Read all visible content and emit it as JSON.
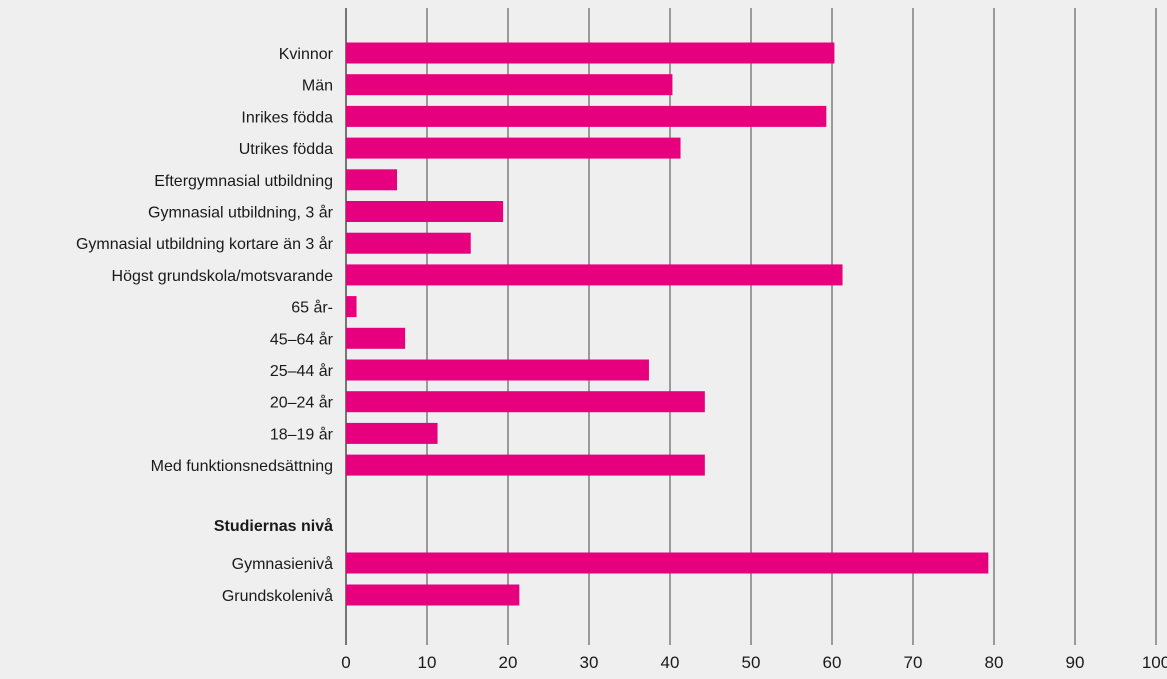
{
  "chart_data": {
    "type": "bar",
    "orientation": "horizontal",
    "title": "",
    "xlabel": "",
    "ylabel": "",
    "xlim": [
      0,
      100
    ],
    "x_ticks": [
      0,
      10,
      20,
      30,
      40,
      50,
      60,
      70,
      80,
      90,
      100
    ],
    "grid": "vertical",
    "legend": "none",
    "bar_color": "#e6007e",
    "gridline_color": "#444444",
    "background_color": "#efefef",
    "categories": [
      "Kvinnor",
      "Män",
      "Inrikes födda",
      "Utrikes födda",
      "Eftergymnasial utbildning",
      "Gymnasial utbildning, 3 år",
      "Gymnasial utbildning kortare än 3 år",
      "Högst grundskola/motsvarande",
      "65 år-",
      "45–64 år",
      "25–44 år",
      "20–24 år",
      "18–19 år",
      "Med funktionsnedsättning",
      "Gymnasienivå",
      "Grundskolenivå"
    ],
    "values": [
      60.3,
      40.3,
      59.3,
      41.3,
      6.3,
      19.4,
      15.4,
      61.3,
      1.3,
      7.3,
      37.4,
      44.3,
      11.3,
      44.3,
      79.3,
      21.4
    ],
    "section_heading": "Studiernas nivå"
  }
}
